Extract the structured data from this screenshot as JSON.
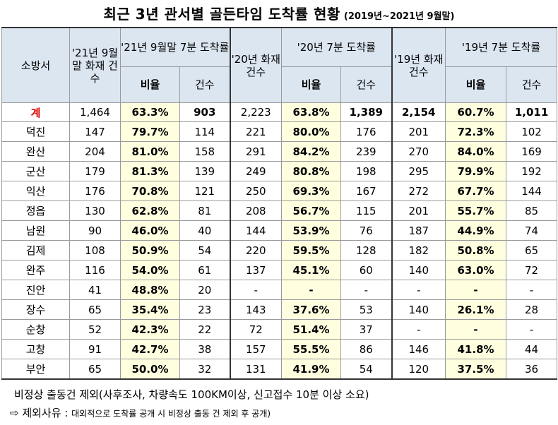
{
  "title": {
    "main": "최근 3년 관서별 골든타임 도착률 현황",
    "sub": "(2019년~2021년 9월말)"
  },
  "header": {
    "station": "소방서",
    "y21_fires": "'21년 9월말 화재 건수",
    "y21_group": "'21년 9월말 7분 도착률",
    "y20_fires": "'20년 화재 건수",
    "y20_group": "'20년 7분 도착률",
    "y19_fires": "'19년 화재 건수",
    "y19_group": "'19년 7분 도착률",
    "ratio": "비율",
    "count": "건수"
  },
  "rows": [
    {
      "station": "계",
      "f21": "1,464",
      "r21": "63.3%",
      "c21": "903",
      "f20": "2,223",
      "r20": "63.8%",
      "c20": "1,389",
      "f19": "2,154",
      "r19": "60.7%",
      "c19": "1,011"
    },
    {
      "station": "덕진",
      "f21": "147",
      "r21": "79.7%",
      "c21": "114",
      "f20": "221",
      "r20": "80.0%",
      "c20": "176",
      "f19": "201",
      "r19": "72.3%",
      "c19": "102"
    },
    {
      "station": "완산",
      "f21": "204",
      "r21": "81.0%",
      "c21": "158",
      "f20": "291",
      "r20": "84.2%",
      "c20": "239",
      "f19": "270",
      "r19": "84.0%",
      "c19": "169"
    },
    {
      "station": "군산",
      "f21": "179",
      "r21": "81.3%",
      "c21": "139",
      "f20": "249",
      "r20": "80.8%",
      "c20": "198",
      "f19": "295",
      "r19": "79.9%",
      "c19": "192"
    },
    {
      "station": "익산",
      "f21": "176",
      "r21": "70.8%",
      "c21": "121",
      "f20": "250",
      "r20": "69.3%",
      "c20": "167",
      "f19": "272",
      "r19": "67.7%",
      "c19": "144"
    },
    {
      "station": "정읍",
      "f21": "130",
      "r21": "62.8%",
      "c21": "81",
      "f20": "208",
      "r20": "56.7%",
      "c20": "115",
      "f19": "201",
      "r19": "55.7%",
      "c19": "85"
    },
    {
      "station": "남원",
      "f21": "90",
      "r21": "46.0%",
      "c21": "40",
      "f20": "144",
      "r20": "53.9%",
      "c20": "76",
      "f19": "187",
      "r19": "44.9%",
      "c19": "74"
    },
    {
      "station": "김제",
      "f21": "108",
      "r21": "50.9%",
      "c21": "54",
      "f20": "220",
      "r20": "59.5%",
      "c20": "128",
      "f19": "182",
      "r19": "50.8%",
      "c19": "65"
    },
    {
      "station": "완주",
      "f21": "116",
      "r21": "54.0%",
      "c21": "61",
      "f20": "137",
      "r20": "45.1%",
      "c20": "60",
      "f19": "140",
      "r19": "63.0%",
      "c19": "72"
    },
    {
      "station": "진안",
      "f21": "41",
      "r21": "48.8%",
      "c21": "20",
      "f20": "-",
      "r20": "-",
      "c20": "-",
      "f19": "-",
      "r19": "-",
      "c19": "-"
    },
    {
      "station": "장수",
      "f21": "65",
      "r21": "35.4%",
      "c21": "23",
      "f20": "143",
      "r20": "37.6%",
      "c20": "53",
      "f19": "140",
      "r19": "26.1%",
      "c19": "28"
    },
    {
      "station": "순창",
      "f21": "52",
      "r21": "42.3%",
      "c21": "22",
      "f20": "72",
      "r20": "51.4%",
      "c20": "37",
      "f19": "-",
      "r19": "-",
      "c19": "-"
    },
    {
      "station": "고창",
      "f21": "91",
      "r21": "42.7%",
      "c21": "38",
      "f20": "157",
      "r20": "55.5%",
      "c20": "86",
      "f19": "146",
      "r19": "41.8%",
      "c19": "44"
    },
    {
      "station": "부안",
      "f21": "65",
      "r21": "50.0%",
      "c21": "32",
      "f20": "131",
      "r20": "41.9%",
      "c20": "54",
      "f19": "120",
      "r19": "37.5%",
      "c19": "36"
    }
  ],
  "notes": {
    "line1": "비정상 출동건 제외(사후조사, 차량속도 100KM이상, 신고접수 10분 이상 소요)",
    "line2_lead": "⇨ 제외사유 : ",
    "line2_text": "대외적으로 도착률 공개 시 비정상 출동 건 제외 후 공개)"
  },
  "colors": {
    "header_bg": "#dce6f1",
    "ratio_bg": "#ffffe0",
    "total_label": "#e00000"
  }
}
